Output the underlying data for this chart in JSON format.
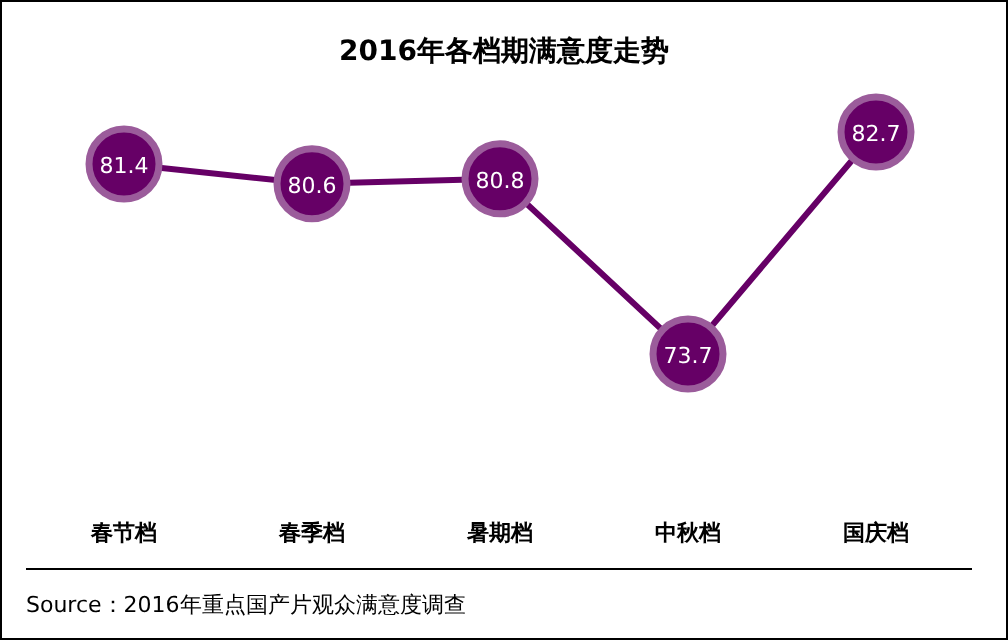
{
  "chart_data": {
    "type": "line",
    "title": "2016年各档期满意度走势",
    "categories": [
      "春节档",
      "春季档",
      "暑期档",
      "中秋档",
      "国庆档"
    ],
    "series": [
      {
        "color": "#660066",
        "values": [
          81.4,
          80.6,
          80.8,
          73.7,
          82.7
        ]
      }
    ],
    "data_labels": true,
    "marker": "circle",
    "line_style": "solid",
    "annotations": [
      "Source：2016年重点国产片观众满意度调查"
    ]
  }
}
